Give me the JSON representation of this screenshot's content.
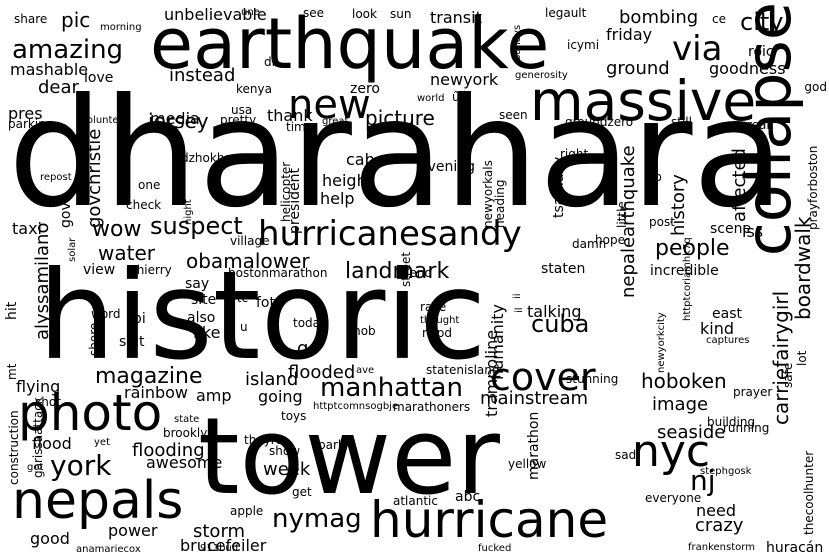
{
  "background_color": "#ffffff",
  "ink_color": "#000000",
  "words": [
    "dharahara",
    "historic",
    "tower",
    "earthquake",
    "collapse",
    "massive",
    "photo",
    "nepals",
    "hurricane",
    "hurricanesandy",
    "nyc",
    "cover",
    "new",
    "via",
    "amazing",
    "city",
    "suspect",
    "magazine",
    "manhattan",
    "york",
    "nymag",
    "picture",
    "landmark",
    "cuba",
    "people",
    "nj",
    "jersey",
    "wow",
    "water",
    "obamalower",
    "island",
    "flooded",
    "mainstream",
    "hoboken",
    "image",
    "seaside",
    "crazy",
    "need",
    "storm",
    "power",
    "brucefeiler",
    "flooding",
    "awesome",
    "week",
    "going",
    "amp",
    "rainbow",
    "flying",
    "alyssamilano",
    "boardwalk",
    "carriefairygirl",
    "nepalearthquake",
    "affected",
    "history",
    "ground",
    "friday",
    "bombing",
    "transit",
    "unbelievable",
    "roic",
    "goodness",
    "mashable",
    "pic",
    "dear",
    "love",
    "instead",
    "zero",
    "newyork",
    "media",
    "thank",
    "pres",
    "taxi",
    "gov",
    "govchristie",
    "president",
    "cab",
    "height",
    "help",
    "evening",
    "tsarnaev",
    "humanity",
    "trampoline",
    "talking",
    "kind",
    "east",
    "scene",
    "iss",
    "incredible",
    "staten",
    "view",
    "say",
    "site",
    "fbi",
    "also",
    "like",
    "shit",
    "hit",
    "foto",
    "go",
    "abc",
    "marathon",
    "flood",
    "brooklyn",
    "theyre",
    "park",
    "apple",
    "good",
    "construction",
    "garissaattack",
    "everyone",
    "sad",
    "yellow",
    "building",
    "running",
    "prayer",
    "thecoolhunter",
    "huracán",
    "atlantic",
    "get",
    "show",
    "toys",
    "marathoners",
    "statenisland",
    "stunning",
    "nypd",
    "race",
    "today",
    "mob",
    "wtc",
    "thierry",
    "bostonmarathon",
    "friend",
    "village",
    "street",
    "damn",
    "hope",
    "post",
    "little",
    "heading",
    "newyorkals",
    "fb",
    "right",
    "groundzero",
    "seen",
    "still",
    "real",
    "prayforboston",
    "volunteer",
    "parking",
    "kenya",
    "usa",
    "pretty",
    "time",
    "great",
    "dzhokhar",
    "helicopter",
    "check",
    "one",
    "repost",
    "night",
    "solar",
    "word",
    "shore",
    "mt",
    "shot",
    "state",
    "yet",
    "got",
    "anamariecox",
    "911buff",
    "fucked",
    "frankenstorm",
    "stephgosk",
    "safe",
    "lot",
    "captures",
    "newyorkcity",
    "u",
    "ave",
    "thought",
    "httptcomnsogbje",
    "httptcoriamhk7q",
    "share",
    "morning",
    "une",
    "see",
    "look",
    "sun",
    "legault",
    "sandys",
    "icymi",
    "ce",
    "god",
    "generosity",
    "di",
    "world",
    "ûó",
    "ii",
    "il"
  ]
}
